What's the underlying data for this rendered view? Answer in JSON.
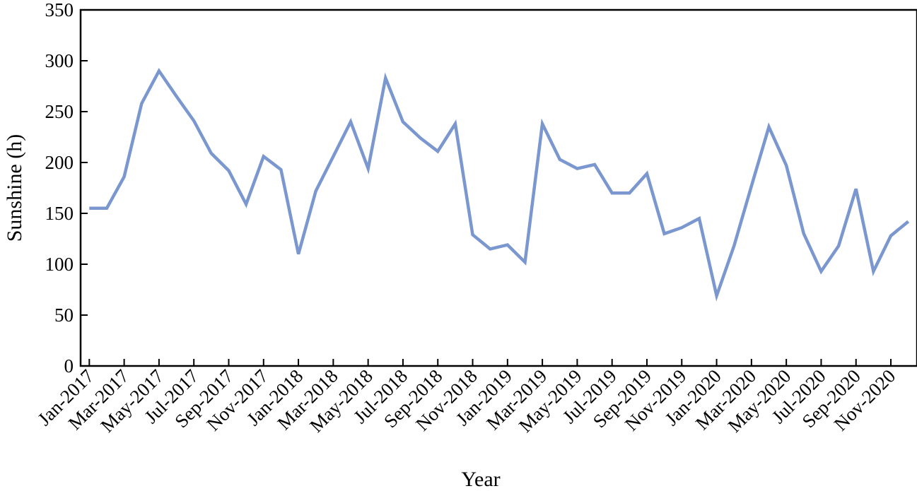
{
  "chart_data": {
    "type": "line",
    "title": "",
    "xlabel": "Year",
    "ylabel": "Sunshine (h)",
    "ylim": [
      0,
      350
    ],
    "yticks": [
      0,
      50,
      100,
      150,
      200,
      250,
      300,
      350
    ],
    "grid": false,
    "legend": "none",
    "line_color": "#7b97cf",
    "x": [
      "Jan-2017",
      "Feb-2017",
      "Mar-2017",
      "Apr-2017",
      "May-2017",
      "Jun-2017",
      "Jul-2017",
      "Aug-2017",
      "Sep-2017",
      "Oct-2017",
      "Nov-2017",
      "Dec-2017",
      "Jan-2018",
      "Feb-2018",
      "Mar-2018",
      "Apr-2018",
      "May-2018",
      "Jun-2018",
      "Jul-2018",
      "Aug-2018",
      "Sep-2018",
      "Oct-2018",
      "Nov-2018",
      "Dec-2018",
      "Jan-2019",
      "Feb-2019",
      "Mar-2019",
      "Apr-2019",
      "May-2019",
      "Jun-2019",
      "Jul-2019",
      "Aug-2019",
      "Sep-2019",
      "Oct-2019",
      "Nov-2019",
      "Dec-2019",
      "Jan-2020",
      "Feb-2020",
      "Mar-2020",
      "Apr-2020",
      "May-2020",
      "Jun-2020",
      "Jul-2020",
      "Aug-2020",
      "Sep-2020",
      "Oct-2020",
      "Nov-2020",
      "Dec-2020"
    ],
    "xtick_labels": [
      "Jan-2017",
      "Mar-2017",
      "May-2017",
      "Jul-2017",
      "Sep-2017",
      "Nov-2017",
      "Jan-2018",
      "Mar-2018",
      "May-2018",
      "Jul-2018",
      "Sep-2018",
      "Nov-2018",
      "Jan-2019",
      "Mar-2019",
      "May-2019",
      "Jul-2019",
      "Sep-2019",
      "Nov-2019",
      "Jan-2020",
      "Mar-2020",
      "May-2020",
      "Jul-2020",
      "Sep-2020",
      "Nov-2020"
    ],
    "series": [
      {
        "values": [
          155,
          155,
          186,
          258,
          290,
          265,
          241,
          209,
          192,
          159,
          206,
          193,
          110,
          172,
          206,
          240,
          194,
          283,
          240,
          224,
          211,
          238,
          129,
          115,
          119,
          102,
          238,
          203,
          194,
          198,
          170,
          170,
          189,
          130,
          136,
          145,
          69,
          118,
          177,
          235,
          197,
          130,
          93,
          118,
          174,
          93,
          128,
          142
        ]
      }
    ]
  }
}
